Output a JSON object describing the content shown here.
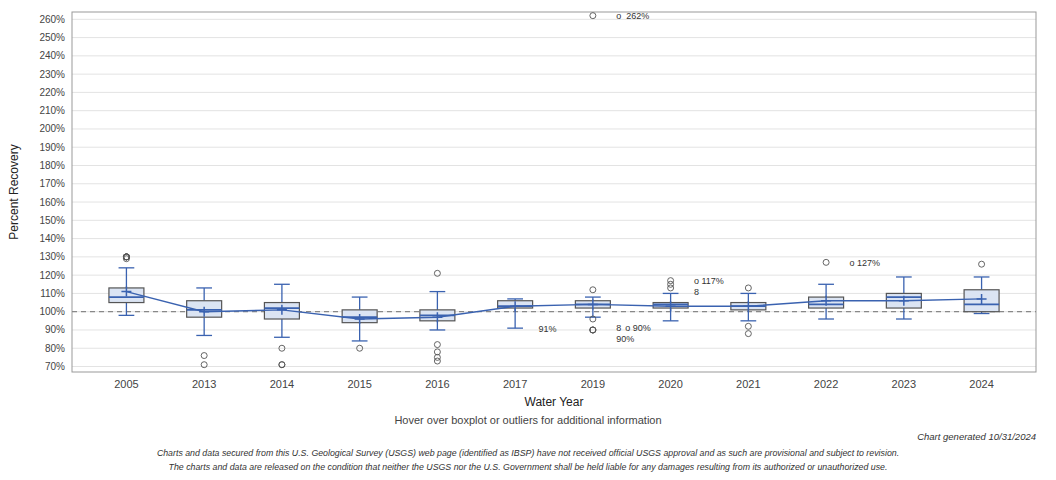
{
  "chart_data": {
    "type": "box",
    "xlabel": "Water Year",
    "ylabel": "Percent Recovery",
    "caption": "Hover over boxplot or outliers for additional information",
    "footnotes": [
      "Chart generated 10/31/2024",
      "Charts and data secured from this U.S. Geological Survey (USGS) web page (identified as IBSP) have not received official USGS approval and as such are provisional and subject to revision.",
      "The charts and data are released on the condition that neither the USGS nor the U.S. Government shall be held liable for any damages resulting from its authorized or unauthorized use."
    ],
    "categories": [
      2005,
      2013,
      2014,
      2015,
      2016,
      2017,
      2019,
      2020,
      2021,
      2022,
      2023,
      2024
    ],
    "boxes": [
      {
        "q1": 105,
        "median": 108,
        "q3": 113,
        "mean": 111,
        "whisker_low": 98,
        "whisker_high": 124,
        "outliers": [
          130,
          130,
          130,
          130,
          130,
          129
        ]
      },
      {
        "q1": 97,
        "median": 101,
        "q3": 106,
        "mean": 100,
        "whisker_low": 87,
        "whisker_high": 113,
        "outliers": [
          76,
          71
        ]
      },
      {
        "q1": 96,
        "median": 102,
        "q3": 105,
        "mean": 101,
        "whisker_low": 86,
        "whisker_high": 115,
        "outliers": [
          80,
          71,
          71
        ]
      },
      {
        "q1": 94,
        "median": 97,
        "q3": 101,
        "mean": 96,
        "whisker_low": 84,
        "whisker_high": 108,
        "outliers": [
          80
        ]
      },
      {
        "q1": 95,
        "median": 98,
        "q3": 101,
        "mean": 97,
        "whisker_low": 90,
        "whisker_high": 111,
        "outliers": [
          82,
          78,
          75,
          73,
          121
        ]
      },
      {
        "q1": 102,
        "median": 103,
        "q3": 106,
        "mean": 103,
        "whisker_low": 91,
        "whisker_high": 107,
        "outliers": []
      },
      {
        "q1": 102,
        "median": 104,
        "q3": 106,
        "mean": 104,
        "whisker_low": 97,
        "whisker_high": 108,
        "outliers": [
          96,
          90,
          90,
          90,
          112,
          262
        ]
      },
      {
        "q1": 102,
        "median": 104,
        "q3": 105,
        "mean": 103,
        "whisker_low": 95,
        "whisker_high": 110,
        "outliers": [
          113,
          115,
          117
        ]
      },
      {
        "q1": 101,
        "median": 103,
        "q3": 105,
        "mean": 103,
        "whisker_low": 95,
        "whisker_high": 110,
        "outliers": [
          92,
          88,
          113
        ]
      },
      {
        "q1": 102,
        "median": 104,
        "q3": 108,
        "mean": 106,
        "whisker_low": 96,
        "whisker_high": 115,
        "outliers": [
          127
        ]
      },
      {
        "q1": 102,
        "median": 108,
        "q3": 110,
        "mean": 106,
        "whisker_low": 96,
        "whisker_high": 119,
        "outliers": []
      },
      {
        "q1": 100,
        "median": 104,
        "q3": 112,
        "mean": 107,
        "whisker_low": 99,
        "whisker_high": 119,
        "outliers": [
          126
        ]
      }
    ],
    "ref_line": 100,
    "color": "#3a62b0",
    "ylim": [
      67,
      264
    ],
    "yticks": [
      {
        "value": 70,
        "label": "70%"
      },
      {
        "value": 80,
        "label": "80%"
      },
      {
        "value": 90,
        "label": "90%"
      },
      {
        "value": 100,
        "label": "100%"
      },
      {
        "value": 110,
        "label": "110%"
      },
      {
        "value": 120,
        "label": "120%"
      },
      {
        "value": 130,
        "label": "130%"
      },
      {
        "value": 140,
        "label": "140%"
      },
      {
        "value": 150,
        "label": "150%"
      },
      {
        "value": 160,
        "label": "160%"
      },
      {
        "value": 170,
        "label": "170%"
      },
      {
        "value": 180,
        "label": "180%"
      },
      {
        "value": 190,
        "label": "190%"
      },
      {
        "value": 200,
        "label": "200%"
      },
      {
        "value": 210,
        "label": "210%"
      },
      {
        "value": 220,
        "label": "220%"
      },
      {
        "value": 230,
        "label": "230%"
      },
      {
        "value": 240,
        "label": "240%"
      },
      {
        "value": 250,
        "label": "250%"
      },
      {
        "value": 260,
        "label": "260%"
      }
    ],
    "grid": true,
    "annotations": [
      {
        "text": "91%",
        "category": 2017,
        "y": 91
      },
      {
        "text": "8",
        "category": 2019,
        "y": 91.2
      },
      {
        "text": "o 90%",
        "category": 2019,
        "y": 91.2
      },
      {
        "text": "90%",
        "category": 2019,
        "y": 89.5
      },
      {
        "text": "o  262%",
        "category": 2019,
        "y": 262
      },
      {
        "text": "o 117%",
        "category": 2020,
        "y": 117
      },
      {
        "text": "8",
        "category": 2020,
        "y": 115
      },
      {
        "text": "o 127%",
        "category": 2022,
        "y": 127
      }
    ]
  }
}
